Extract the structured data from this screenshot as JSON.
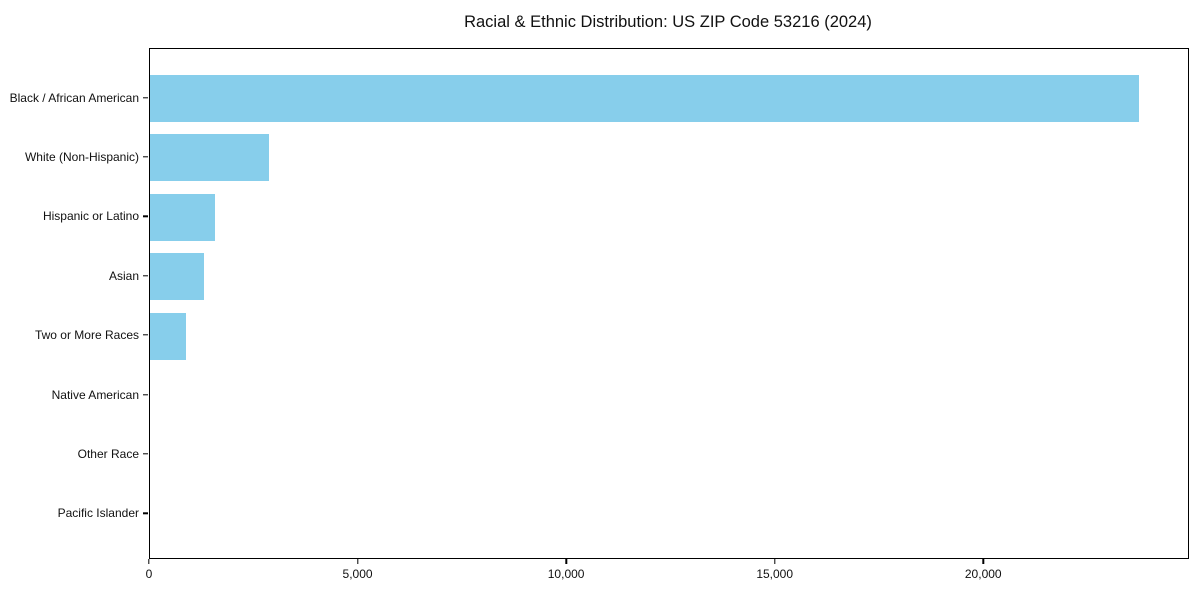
{
  "title": "Racial & Ethnic Distribution: US ZIP Code 53216 (2024)",
  "chart_data": {
    "type": "bar",
    "orientation": "horizontal",
    "title": "Racial & Ethnic Distribution: US ZIP Code 53216 (2024)",
    "xlabel": "",
    "ylabel": "",
    "categories": [
      "Black / African American",
      "White (Non-Hispanic)",
      "Hispanic or Latino",
      "Asian",
      "Two or More Races",
      "Native American",
      "Other Race",
      "Pacific Islander"
    ],
    "values": [
      23700,
      2850,
      1560,
      1300,
      860,
      0,
      0,
      0
    ],
    "xlim": [
      0,
      24885
    ],
    "x_ticks": {
      "values": [
        0,
        5000,
        10000,
        15000,
        20000
      ],
      "labels": [
        "0",
        "5,000",
        "10,000",
        "15,000",
        "20,000"
      ]
    },
    "bar_color": "#87CEEB",
    "axis_color": "#000000",
    "grid": false,
    "legend": false
  }
}
